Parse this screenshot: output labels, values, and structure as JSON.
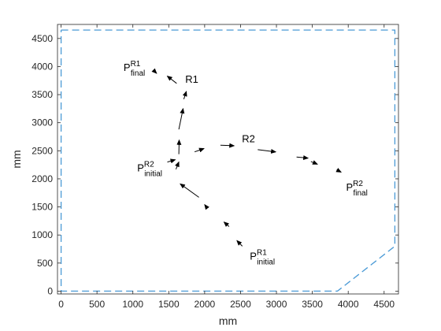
{
  "chart_data": {
    "type": "line",
    "title": "",
    "xlabel": "mm",
    "ylabel": "mm",
    "xlim": [
      -50,
      4700
    ],
    "ylim": [
      -50,
      4750
    ],
    "xticks": [
      0,
      500,
      1000,
      1500,
      2000,
      2500,
      3000,
      3500,
      4000,
      4500
    ],
    "xtick_labels": [
      "0",
      "500",
      "1000",
      "1500",
      "2000",
      "2500",
      "3000",
      "3500",
      "4000",
      "4500"
    ],
    "yticks": [
      0,
      500,
      1000,
      1500,
      2000,
      2500,
      3000,
      3500,
      4000,
      4500
    ],
    "ytick_labels": [
      "0",
      "500",
      "1000",
      "1500",
      "2000",
      "2500",
      "3000",
      "3500",
      "4000",
      "4500"
    ],
    "grid": false,
    "boundary": {
      "color": "#4a9ad6",
      "style": "dashed",
      "points": [
        [
          0,
          4650
        ],
        [
          4650,
          4650
        ],
        [
          4650,
          800
        ],
        [
          3850,
          0
        ],
        [
          0,
          0
        ],
        [
          0,
          4650
        ]
      ]
    },
    "series": [
      {
        "name": "R1",
        "color": "#000000",
        "segments": [
          [
            [
              2525,
              800
            ],
            [
              2450,
              900
            ]
          ],
          [
            [
              2340,
              1150
            ],
            [
              2270,
              1230
            ]
          ],
          [
            [
              2030,
              1490
            ],
            [
              2000,
              1540
            ]
          ],
          [
            [
              1920,
              1670
            ],
            [
              1660,
              1910
            ]
          ],
          [
            [
              1600,
              2170
            ],
            [
              1640,
              2300
            ]
          ],
          [
            [
              1640,
              2440
            ],
            [
              1645,
              2690
            ]
          ],
          [
            [
              1640,
              2880
            ],
            [
              1700,
              3250
            ]
          ],
          [
            [
              1710,
              3420
            ],
            [
              1745,
              3555
            ]
          ],
          [
            [
              1610,
              3700
            ],
            [
              1480,
              3830
            ]
          ],
          [
            [
              1290,
              3930
            ],
            [
              1330,
              3880
            ]
          ]
        ]
      },
      {
        "name": "R2",
        "color": "#000000",
        "segments": [
          [
            [
              1480,
              2300
            ],
            [
              1590,
              2340
            ]
          ],
          [
            [
              1860,
              2480
            ],
            [
              1990,
              2540
            ]
          ],
          [
            [
              2220,
              2600
            ],
            [
              2410,
              2590
            ]
          ],
          [
            [
              2740,
              2520
            ],
            [
              2990,
              2480
            ]
          ],
          [
            [
              3280,
              2390
            ],
            [
              3440,
              2370
            ]
          ],
          [
            [
              3480,
              2310
            ],
            [
              3570,
              2260
            ]
          ],
          [
            [
              3840,
              2160
            ],
            [
              3900,
              2120
            ]
          ]
        ]
      }
    ],
    "annotations": [
      {
        "text": "P",
        "sup": "R1",
        "sub": "final",
        "x": 870,
        "y": 3920
      },
      {
        "text": "R1",
        "sup": "",
        "sub": "",
        "x": 1730,
        "y": 3710
      },
      {
        "text": "R2",
        "sup": "",
        "sub": "",
        "x": 2520,
        "y": 2650
      },
      {
        "text": "P",
        "sup": "R2",
        "sub": "initial",
        "x": 1060,
        "y": 2130
      },
      {
        "text": "P",
        "sup": "R2",
        "sub": "final",
        "x": 3970,
        "y": 1790
      },
      {
        "text": "P",
        "sup": "R1",
        "sub": "initial",
        "x": 2630,
        "y": 560
      }
    ]
  }
}
